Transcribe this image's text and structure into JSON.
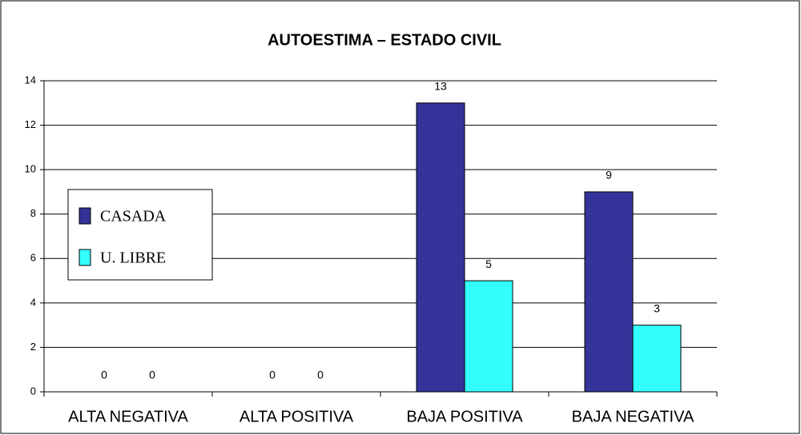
{
  "chart_data": {
    "type": "bar",
    "title": "AUTOESTIMA – ESTADO CIVIL",
    "categories": [
      "ALTA NEGATIVA",
      "ALTA POSITIVA",
      "BAJA POSITIVA",
      "BAJA NEGATIVA"
    ],
    "series": [
      {
        "name": "CASADA",
        "color": "#333399",
        "values": [
          0,
          0,
          13,
          9
        ]
      },
      {
        "name": "U. LIBRE",
        "color": "#33ffff",
        "values": [
          0,
          0,
          5,
          3
        ]
      }
    ],
    "ylim": [
      0,
      14
    ],
    "yticks": [
      0,
      2,
      4,
      6,
      8,
      10,
      12,
      14
    ],
    "grid": true,
    "legend": "left"
  }
}
